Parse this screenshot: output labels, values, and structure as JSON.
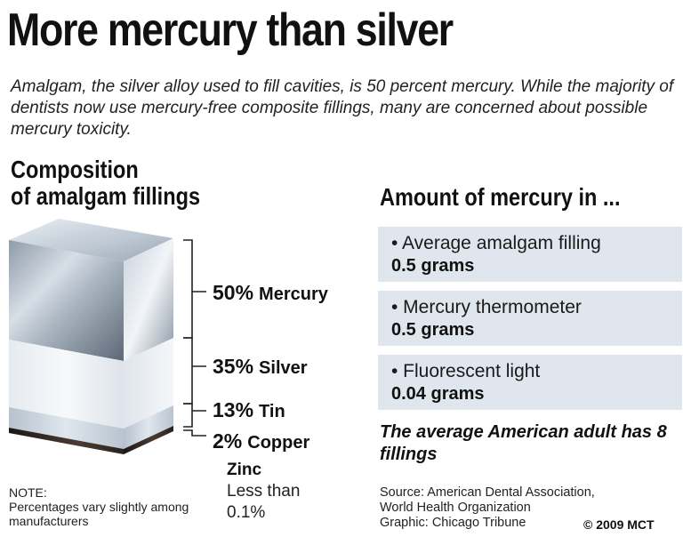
{
  "title": "More mercury than silver",
  "subtitle": "Amalgam, the silver alloy used to fill cavities, is 50 percent mercury. While the majority of dentists now use mercury-free composite fillings, many are concerned about possible mercury toxicity.",
  "composition": {
    "heading_line1": "Composition",
    "heading_line2": "of amalgam fillings",
    "items": [
      {
        "pct": "50%",
        "name": "Mercury",
        "value": 50
      },
      {
        "pct": "35%",
        "name": "Silver",
        "value": 35
      },
      {
        "pct": "13%",
        "name": "Tin",
        "value": 13
      },
      {
        "pct": "2%",
        "name": "Copper",
        "value": 2
      }
    ],
    "zinc": {
      "name": "Zinc",
      "value": "Less than 0.1%"
    }
  },
  "amounts": {
    "heading": "Amount of mercury in ...",
    "items": [
      {
        "label": "• Average amalgam filling",
        "amount": "0.5 grams"
      },
      {
        "label": "• Mercury thermometer",
        "amount": "0.5 grams"
      },
      {
        "label": "• Fluorescent light",
        "amount": "0.04 grams"
      }
    ],
    "note": "The average American adult has 8 fillings"
  },
  "footer": {
    "note_label": "NOTE:",
    "note_text": "Percentages vary slightly among manufacturers",
    "source_line1": "Source: American Dental Association,",
    "source_line2": "World Health Organization",
    "source_line3": "Graphic: Chicago Tribune",
    "copyright": "© 2009 MCT"
  }
}
